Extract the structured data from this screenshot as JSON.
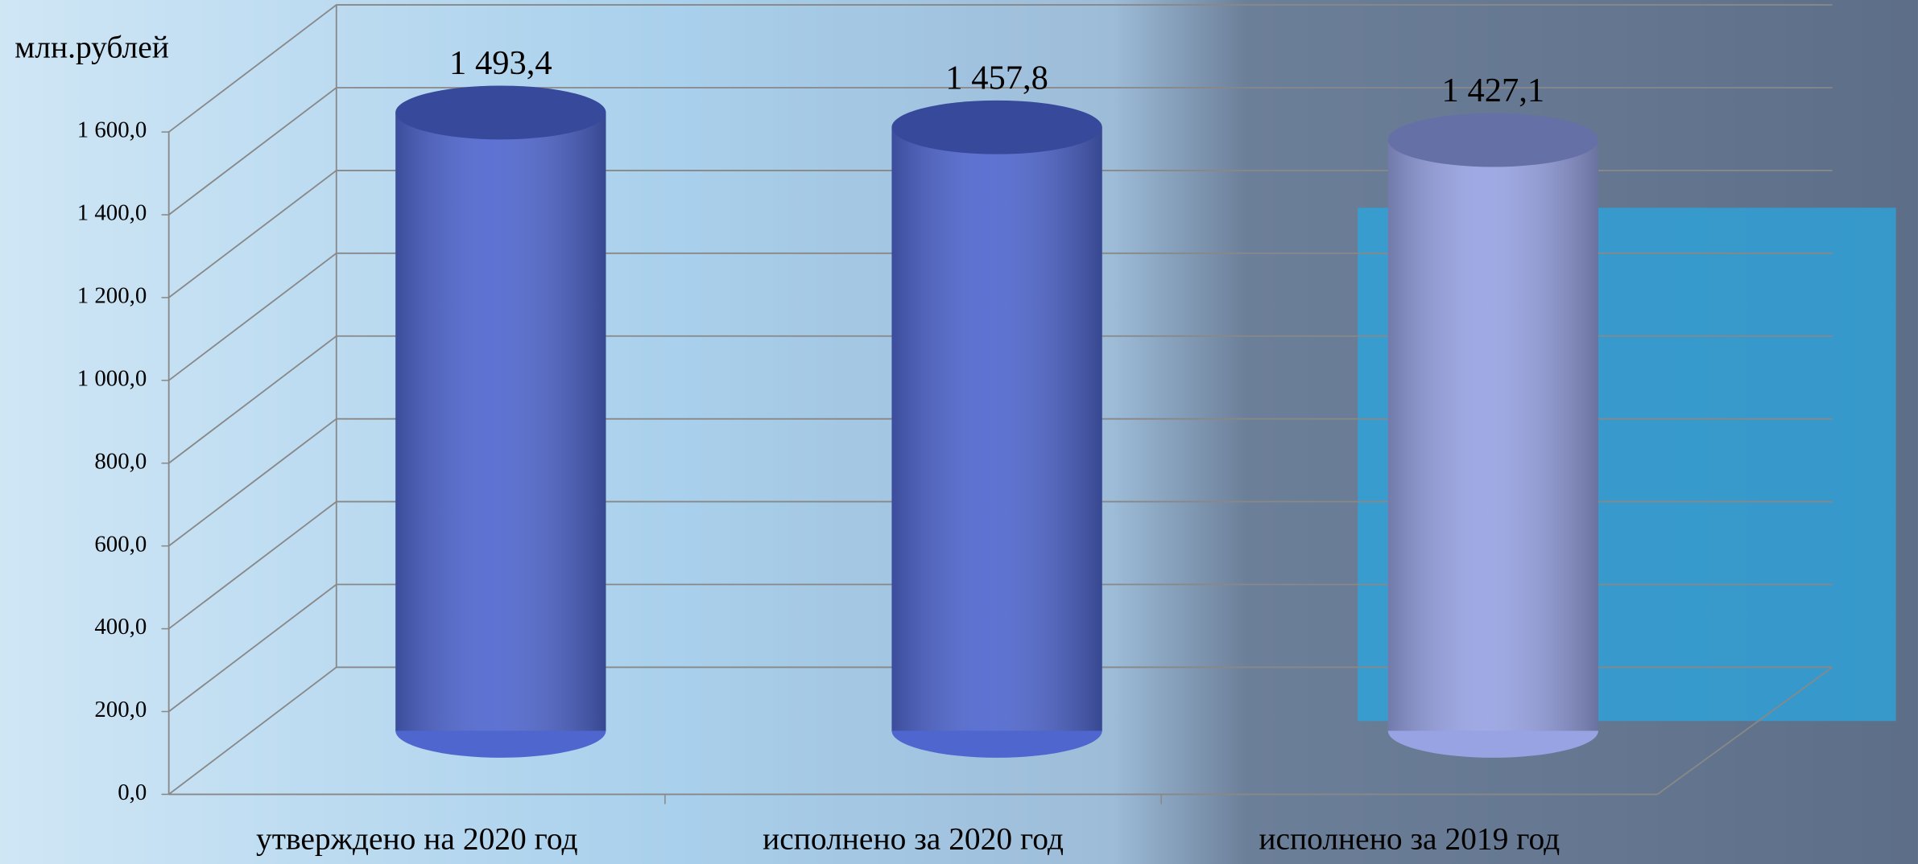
{
  "chart_data": {
    "type": "bar",
    "y_label": "млн.рублей",
    "categories": [
      "утверждено на 2020 год",
      "исполнено за 2020 год",
      "исполнено за 2019 год"
    ],
    "values": [
      1493.4,
      1457.8,
      1427.1
    ],
    "value_labels": [
      "1 493,4",
      "1 457,8",
      "1 427,1"
    ],
    "colors": [
      "#4f66cf",
      "#4f66cf",
      "#97a3e3"
    ],
    "ylim": [
      0,
      1600
    ],
    "yticks": [
      {
        "value": 0,
        "label": "0,0"
      },
      {
        "value": 200,
        "label": "200,0"
      },
      {
        "value": 400,
        "label": "400,0"
      },
      {
        "value": 600,
        "label": "600,0"
      },
      {
        "value": 800,
        "label": "800,0"
      },
      {
        "value": 1000,
        "label": "1 000,0"
      },
      {
        "value": 1200,
        "label": "1 200,0"
      },
      {
        "value": 1400,
        "label": "1 400,0"
      },
      {
        "value": 1600,
        "label": "1 600,0"
      }
    ],
    "grid": true
  }
}
